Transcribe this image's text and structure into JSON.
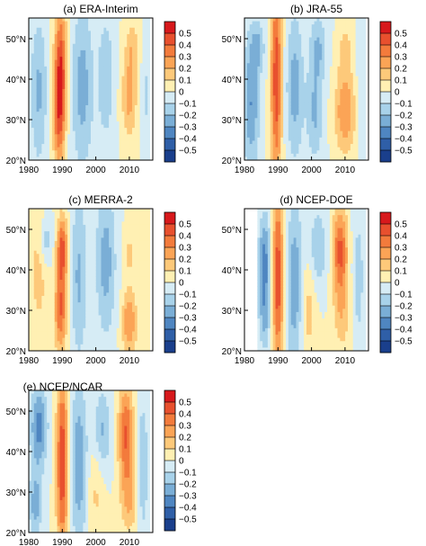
{
  "figure": {
    "panels": [
      {
        "key": "era",
        "title": "(a)  ERA-Interim"
      },
      {
        "key": "jra",
        "title": "(b)  JRA-55"
      },
      {
        "key": "merra",
        "title": "(c)  MERRA-2"
      },
      {
        "key": "ncepdoe",
        "title": "(d)  NCEP-DOE"
      },
      {
        "key": "ncepncar",
        "title": "(e)  NCEP/NCAR"
      }
    ]
  },
  "chart_data": {
    "type": "heatmap",
    "x_ticks": [
      "1980",
      "1990",
      "2000",
      "2010"
    ],
    "y_ticks": [
      "20°N",
      "30°N",
      "40°N",
      "50°N"
    ],
    "xlim": [
      1980,
      2017
    ],
    "ylim": [
      20,
      55
    ],
    "colorbar": {
      "labels": [
        "0.5",
        "0.4",
        "0.3",
        "0.2",
        "0.1",
        "0",
        "−0.1",
        "−0.2",
        "−0.3",
        "−0.4",
        "−0.5"
      ],
      "colors": [
        "#d7191c",
        "#e8502e",
        "#f37b3c",
        "#fba456",
        "#fdc97a",
        "#fff0b3",
        "#d6ecf5",
        "#a8d2ea",
        "#7aaed6",
        "#4f86c1",
        "#2f5fa7",
        "#1a3f8c"
      ]
    },
    "panels": [
      {
        "key": "era",
        "period": [
          1980,
          2016
        ],
        "features": [
          {
            "x": 1983,
            "y": 37,
            "w": 2.5,
            "h": 18,
            "amp": -0.22
          },
          {
            "x": 1989.5,
            "y": 44,
            "w": 1.8,
            "h": 14,
            "amp": 0.45
          },
          {
            "x": 1989,
            "y": 30,
            "w": 1.8,
            "h": 12,
            "amp": 0.35
          },
          {
            "x": 1996,
            "y": 38,
            "w": 3.2,
            "h": 20,
            "amp": -0.25
          },
          {
            "x": 2003,
            "y": 40,
            "w": 2.5,
            "h": 16,
            "amp": -0.18
          },
          {
            "x": 2010,
            "y": 36,
            "w": 2.2,
            "h": 10,
            "amp": 0.25
          },
          {
            "x": 2011,
            "y": 48,
            "w": 2,
            "h": 6,
            "amp": 0.15
          },
          {
            "x": 2015,
            "y": 36,
            "w": 1.5,
            "h": 12,
            "amp": -0.12
          }
        ]
      },
      {
        "key": "jra",
        "period": [
          1980,
          2016
        ],
        "features": [
          {
            "x": 1982,
            "y": 34,
            "w": 2.5,
            "h": 16,
            "amp": -0.3
          },
          {
            "x": 1984,
            "y": 48,
            "w": 2,
            "h": 6,
            "amp": -0.2
          },
          {
            "x": 1989.5,
            "y": 40,
            "w": 1.6,
            "h": 25,
            "amp": 0.48
          },
          {
            "x": 1995,
            "y": 38,
            "w": 2.5,
            "h": 18,
            "amp": -0.25
          },
          {
            "x": 2001,
            "y": 32,
            "w": 2.5,
            "h": 12,
            "amp": -0.22
          },
          {
            "x": 2002,
            "y": 48,
            "w": 2.5,
            "h": 8,
            "amp": -0.2
          },
          {
            "x": 2010,
            "y": 32,
            "w": 3,
            "h": 10,
            "amp": 0.3
          },
          {
            "x": 2010,
            "y": 47,
            "w": 2,
            "h": 6,
            "amp": 0.15
          },
          {
            "x": 2015,
            "y": 40,
            "w": 1.5,
            "h": 15,
            "amp": -0.1
          }
        ]
      },
      {
        "key": "merra",
        "period": [
          1980,
          2016
        ],
        "features": [
          {
            "x": 1983,
            "y": 40,
            "w": 2.5,
            "h": 16,
            "amp": 0.15
          },
          {
            "x": 1985,
            "y": 47,
            "w": 2,
            "h": 6,
            "amp": -0.18
          },
          {
            "x": 1990,
            "y": 45,
            "w": 1.6,
            "h": 8,
            "amp": 0.45
          },
          {
            "x": 1989.5,
            "y": 30,
            "w": 1.8,
            "h": 10,
            "amp": 0.4
          },
          {
            "x": 1995,
            "y": 38,
            "w": 2.5,
            "h": 20,
            "amp": -0.22
          },
          {
            "x": 2003,
            "y": 42,
            "w": 3,
            "h": 18,
            "amp": -0.25
          },
          {
            "x": 2010,
            "y": 27,
            "w": 2.2,
            "h": 8,
            "amp": 0.3
          },
          {
            "x": 2010,
            "y": 44,
            "w": 2,
            "h": 6,
            "amp": 0.12
          }
        ]
      },
      {
        "key": "ncepdoe",
        "period": [
          1984,
          2016
        ],
        "features": [
          {
            "x": 1986,
            "y": 44,
            "w": 1.8,
            "h": 10,
            "amp": -0.3
          },
          {
            "x": 1986,
            "y": 30,
            "w": 1.8,
            "h": 10,
            "amp": -0.25
          },
          {
            "x": 1990,
            "y": 38,
            "w": 1.6,
            "h": 22,
            "amp": 0.48
          },
          {
            "x": 1995,
            "y": 36,
            "w": 2.5,
            "h": 20,
            "amp": -0.28
          },
          {
            "x": 1999,
            "y": 30,
            "w": 2.5,
            "h": 12,
            "amp": 0.15
          },
          {
            "x": 2002,
            "y": 45,
            "w": 2.5,
            "h": 10,
            "amp": -0.2
          },
          {
            "x": 2008.5,
            "y": 45,
            "w": 2.2,
            "h": 10,
            "amp": 0.42
          },
          {
            "x": 2009,
            "y": 30,
            "w": 2.5,
            "h": 10,
            "amp": 0.18
          },
          {
            "x": 2014,
            "y": 38,
            "w": 1.8,
            "h": 18,
            "amp": -0.15
          }
        ]
      },
      {
        "key": "ncepncar",
        "period": [
          1980,
          2016
        ],
        "features": [
          {
            "x": 1983,
            "y": 46,
            "w": 2.5,
            "h": 10,
            "amp": -0.35
          },
          {
            "x": 1982,
            "y": 27,
            "w": 2,
            "h": 8,
            "amp": -0.25
          },
          {
            "x": 1990,
            "y": 37,
            "w": 1.7,
            "h": 22,
            "amp": 0.5
          },
          {
            "x": 1995,
            "y": 37,
            "w": 2.5,
            "h": 20,
            "amp": -0.28
          },
          {
            "x": 2000,
            "y": 30,
            "w": 2.5,
            "h": 12,
            "amp": 0.12
          },
          {
            "x": 2002,
            "y": 45,
            "w": 2.5,
            "h": 10,
            "amp": -0.22
          },
          {
            "x": 2009,
            "y": 44,
            "w": 2.2,
            "h": 12,
            "amp": 0.42
          },
          {
            "x": 2010,
            "y": 28,
            "w": 2.5,
            "h": 8,
            "amp": 0.2
          },
          {
            "x": 2014,
            "y": 36,
            "w": 1.8,
            "h": 18,
            "amp": -0.18
          }
        ]
      }
    ]
  }
}
